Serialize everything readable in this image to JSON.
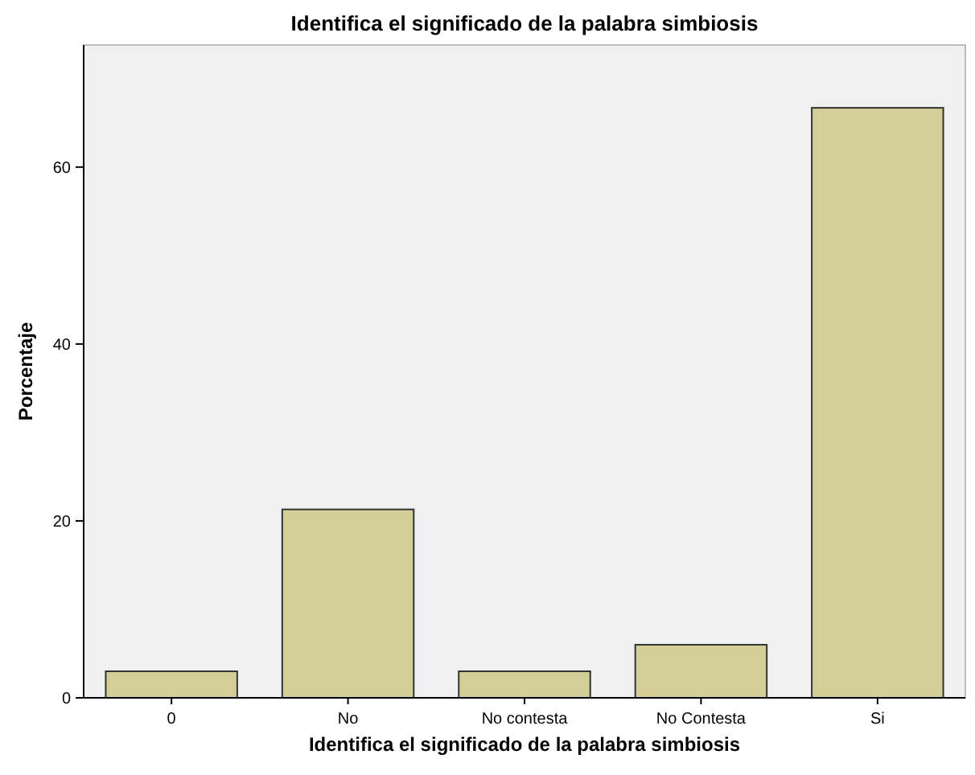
{
  "chart_data": {
    "type": "bar",
    "title": "Identifica el significado de la palabra simbiosis",
    "xlabel": "Identifica el significado de la palabra simbiosis",
    "ylabel": "Porcentaje",
    "categories": [
      "0",
      "No",
      "No contesta",
      "No Contesta",
      "Si"
    ],
    "values": [
      3.0,
      21.3,
      3.0,
      6.0,
      66.7
    ],
    "color": "#d3ce97",
    "ylim": [
      0,
      73.8
    ],
    "yticks": [
      0,
      20,
      40,
      60
    ],
    "grid": false
  }
}
